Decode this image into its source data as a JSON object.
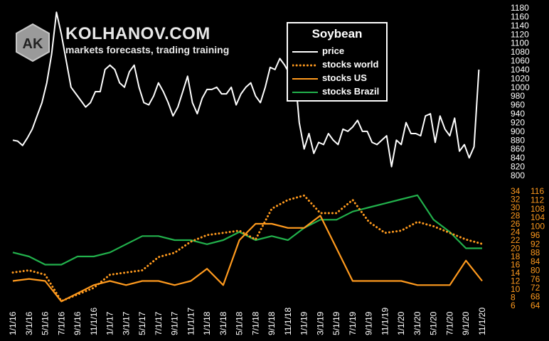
{
  "brand": {
    "logo_text": "AK",
    "name": "KOLHANOV.COM",
    "tagline": "markets forecasts, trading training"
  },
  "chart_data": {
    "type": "line",
    "title": "Soybean",
    "x_tick_labels": [
      "1/1/16",
      "3/1/16",
      "5/1/16",
      "7/1/16",
      "9/1/16",
      "11/1/16",
      "1/1/17",
      "3/1/17",
      "5/1/17",
      "7/1/17",
      "9/1/17",
      "11/1/17",
      "1/1/18",
      "3/1/18",
      "5/1/18",
      "7/1/18",
      "9/1/18",
      "11/1/18",
      "1/1/19",
      "3/1/19",
      "5/1/19",
      "7/1/19",
      "9/1/19",
      "11/1/19",
      "1/1/20",
      "3/1/20",
      "5/1/20",
      "7/1/20",
      "9/1/20",
      "11/1/20"
    ],
    "price_axis": {
      "min": 800,
      "max": 1180,
      "ticks": [
        800,
        820,
        840,
        860,
        880,
        900,
        920,
        940,
        960,
        980,
        1000,
        1020,
        1040,
        1060,
        1080,
        1100,
        1120,
        1140,
        1160,
        1180
      ]
    },
    "stocks_axis_left": {
      "min": 6,
      "max": 34,
      "ticks": [
        6,
        8,
        10,
        12,
        14,
        16,
        18,
        20,
        22,
        24,
        26,
        28,
        30,
        32,
        34
      ]
    },
    "stocks_axis_right": {
      "min": 64,
      "max": 116,
      "ticks": [
        64,
        68,
        72,
        76,
        80,
        84,
        88,
        92,
        96,
        100,
        104,
        108,
        112,
        116
      ]
    },
    "series": [
      {
        "name": "price",
        "color": "#ffffff",
        "style": "solid",
        "axis": "price",
        "x": [
          0,
          0.3,
          0.6,
          0.9,
          1.2,
          1.5,
          1.8,
          2.1,
          2.4,
          2.7,
          3.0,
          3.3,
          3.6,
          3.9,
          4.2,
          4.5,
          4.8,
          5.1,
          5.4,
          5.7,
          6.0,
          6.3,
          6.6,
          6.9,
          7.2,
          7.5,
          7.8,
          8.1,
          8.4,
          8.7,
          9.0,
          9.3,
          9.6,
          9.9,
          10.2,
          10.5,
          10.8,
          11.1,
          11.4,
          11.7,
          12.0,
          12.3,
          12.6,
          12.9,
          13.2,
          13.5,
          13.8,
          14.1,
          14.4,
          14.7,
          15.0,
          15.3,
          15.6,
          15.9,
          16.2,
          16.5,
          16.8,
          17.1,
          17.4,
          17.7,
          18.0,
          18.3,
          18.6,
          18.9,
          19.2,
          19.5,
          19.8,
          20.1,
          20.4,
          20.7,
          21.0,
          21.3,
          21.6,
          21.9,
          22.2,
          22.5,
          22.8,
          23.1,
          23.4,
          23.7,
          24.0,
          24.3,
          24.6,
          24.9,
          25.2,
          25.5,
          25.8,
          26.1,
          26.4,
          26.7,
          27.0,
          27.3,
          27.6,
          27.9,
          28.2,
          28.5,
          28.8
        ],
        "values": [
          880,
          878,
          868,
          885,
          905,
          935,
          965,
          1010,
          1075,
          1170,
          1120,
          1060,
          1000,
          985,
          970,
          955,
          965,
          990,
          990,
          1040,
          1050,
          1040,
          1010,
          1000,
          1035,
          1050,
          1000,
          965,
          960,
          980,
          1010,
          990,
          965,
          935,
          955,
          990,
          1025,
          965,
          940,
          975,
          995,
          995,
          1000,
          985,
          985,
          1000,
          960,
          985,
          1000,
          1010,
          980,
          965,
          1000,
          1045,
          1040,
          1065,
          1050,
          1030,
          1045,
          920,
          860,
          895,
          850,
          875,
          870,
          895,
          880,
          870,
          905,
          900,
          910,
          925,
          900,
          900,
          875,
          870,
          880,
          890,
          820,
          880,
          870,
          920,
          895,
          895,
          890,
          935,
          940,
          875,
          935,
          905,
          890,
          930,
          855,
          870,
          840,
          865,
          1040
        ]
      },
      {
        "name": "stocks world",
        "color": "#ff9a1e",
        "style": "dotted",
        "axis": "stocks_right",
        "x": [
          0,
          1,
          2,
          3,
          4,
          5,
          6,
          7,
          8,
          9,
          10,
          11,
          12,
          13,
          14,
          15,
          16,
          17,
          18,
          19,
          20,
          21,
          22,
          23,
          24,
          25,
          26,
          27,
          28,
          29
        ],
        "values": [
          79,
          80,
          78,
          66,
          69,
          72,
          78,
          79,
          80,
          86,
          88,
          93,
          96,
          97,
          98,
          94,
          108,
          112,
          114,
          106,
          106,
          112,
          102,
          97,
          98,
          102,
          100,
          97,
          94,
          92
        ]
      },
      {
        "name": "stocks US",
        "color": "#ff9a1e",
        "style": "solid",
        "axis": "stocks_left",
        "x": [
          0,
          1,
          2,
          3,
          4,
          5,
          6,
          7,
          8,
          9,
          10,
          11,
          12,
          13,
          14,
          15,
          16,
          17,
          18,
          19,
          20,
          21,
          22,
          23,
          24,
          25,
          26,
          27,
          28,
          29
        ],
        "values": [
          12,
          12.5,
          12,
          7,
          9,
          11,
          12,
          11,
          12,
          12,
          11,
          12,
          15,
          11,
          22,
          26,
          26,
          25,
          25,
          28,
          20,
          12,
          12,
          12,
          12,
          11,
          11,
          11,
          17,
          12
        ]
      },
      {
        "name": "stocks Brazil",
        "color": "#22b14c",
        "style": "solid",
        "axis": "stocks_left",
        "x": [
          0,
          1,
          2,
          3,
          4,
          5,
          6,
          7,
          8,
          9,
          10,
          11,
          12,
          13,
          14,
          15,
          16,
          17,
          18,
          19,
          20,
          21,
          22,
          23,
          24,
          25,
          26,
          27,
          28,
          29
        ],
        "values": [
          19,
          18,
          16,
          16,
          18,
          18,
          19,
          21,
          23,
          23,
          22,
          22,
          21,
          22,
          24,
          22,
          23,
          22,
          25,
          27,
          27,
          29,
          30,
          31,
          32,
          33,
          27,
          24,
          20,
          20
        ]
      }
    ],
    "legend_position": "top-center",
    "grid": false
  }
}
